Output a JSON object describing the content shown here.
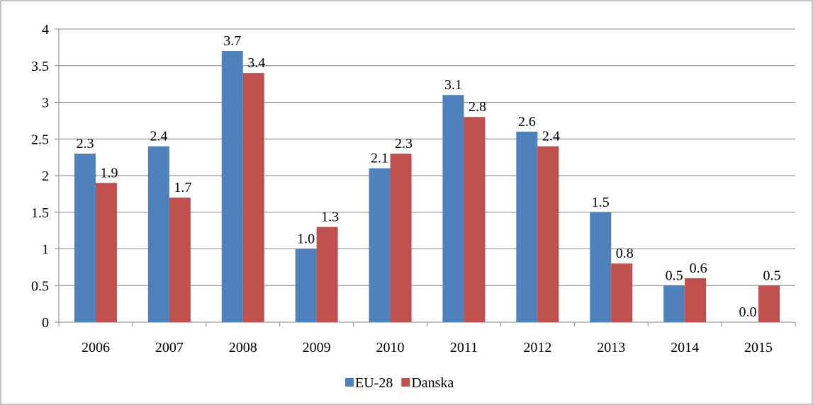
{
  "chart_data": {
    "type": "bar",
    "categories": [
      "2006",
      "2007",
      "2008",
      "2009",
      "2010",
      "2011",
      "2012",
      "2013",
      "2014",
      "2015"
    ],
    "series": [
      {
        "name": "EU-28",
        "color": "#4f81bd",
        "values": [
          2.3,
          2.4,
          3.7,
          1.0,
          2.1,
          3.1,
          2.6,
          1.5,
          0.5,
          0.0
        ],
        "value_labels": [
          "2.3",
          "2.4",
          "3.7",
          "1.0",
          "2.1",
          "3.1",
          "2.6",
          "1.5",
          "0.5",
          "0.0"
        ]
      },
      {
        "name": "Danska",
        "color": "#c0504d",
        "values": [
          1.9,
          1.7,
          3.4,
          1.3,
          2.3,
          2.8,
          2.4,
          0.8,
          0.6,
          0.5
        ],
        "value_labels": [
          "1.9",
          "1.7",
          "3.4",
          "1.3",
          "2.3",
          "2.8",
          "2.4",
          "0.8",
          "0.6",
          "0.5"
        ]
      }
    ],
    "ylim": [
      0,
      4
    ],
    "yticks": [
      0,
      0.5,
      1,
      1.5,
      2,
      2.5,
      3,
      3.5,
      4
    ],
    "grid": true,
    "legend": "bottom"
  }
}
